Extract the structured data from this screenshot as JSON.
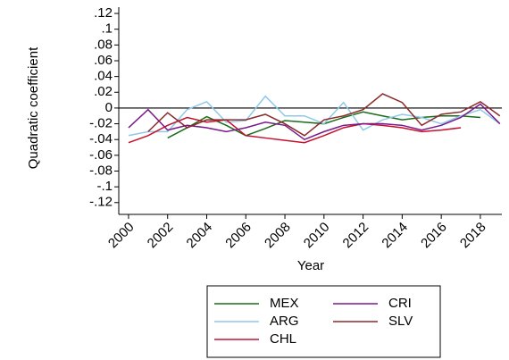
{
  "chart_data": {
    "type": "line",
    "y_label": "Quadratic coefficient",
    "x_label": "Year",
    "x": [
      2000,
      2001,
      2002,
      2003,
      2004,
      2005,
      2006,
      2007,
      2008,
      2009,
      2010,
      2011,
      2012,
      2013,
      2014,
      2015,
      2016,
      2017,
      2018,
      2019
    ],
    "series": [
      {
        "name": "MEX",
        "color": "#1a6b1a",
        "values": [
          null,
          null,
          -0.038,
          -0.025,
          -0.011,
          -0.022,
          -0.035,
          -0.026,
          -0.016,
          -0.018,
          -0.02,
          -0.012,
          -0.005,
          -0.01,
          -0.015,
          -0.012,
          -0.01,
          -0.01,
          -0.012,
          null
        ]
      },
      {
        "name": "ARG",
        "color": "#8ec9e8",
        "values": [
          -0.035,
          -0.03,
          -0.03,
          -0.002,
          0.008,
          -0.018,
          -0.016,
          0.015,
          -0.01,
          -0.01,
          -0.02,
          0.007,
          -0.028,
          -0.015,
          -0.008,
          -0.012,
          -0.02,
          -0.01,
          -0.002,
          -0.02
        ]
      },
      {
        "name": "CHL",
        "color": "#c8102e",
        "values": [
          -0.044,
          -0.035,
          -0.022,
          -0.012,
          -0.018,
          -0.015,
          -0.035,
          -0.038,
          -0.041,
          -0.044,
          -0.035,
          -0.025,
          -0.02,
          -0.022,
          -0.025,
          -0.03,
          -0.028,
          -0.025,
          null,
          null
        ]
      },
      {
        "name": "CRI",
        "color": "#7a1a8a",
        "values": [
          -0.025,
          -0.002,
          -0.028,
          -0.022,
          -0.025,
          -0.03,
          -0.025,
          -0.018,
          -0.022,
          -0.04,
          -0.03,
          -0.022,
          -0.02,
          -0.02,
          -0.022,
          -0.028,
          -0.022,
          -0.012,
          0.005,
          -0.02
        ]
      },
      {
        "name": "SLV",
        "color": "#8b2a2a",
        "values": [
          null,
          -0.03,
          -0.006,
          -0.025,
          -0.015,
          -0.015,
          -0.015,
          -0.008,
          -0.02,
          -0.035,
          -0.015,
          -0.01,
          -0.002,
          0.018,
          0.007,
          -0.022,
          -0.008,
          -0.005,
          0.008,
          -0.01
        ]
      }
    ],
    "xlim": [
      1999.5,
      2019.1
    ],
    "xticks": [
      2000,
      2002,
      2004,
      2006,
      2008,
      2010,
      2012,
      2014,
      2016,
      2018
    ],
    "ylim": [
      -0.135,
      0.128
    ],
    "yticks": [
      {
        "value": 0.12,
        "label": ".12"
      },
      {
        "value": 0.1,
        "label": ".1"
      },
      {
        "value": 0.08,
        "label": ".08"
      },
      {
        "value": 0.06,
        "label": ".06"
      },
      {
        "value": 0.04,
        "label": ".04"
      },
      {
        "value": 0.02,
        "label": ".02"
      },
      0,
      {
        "value": -0.02,
        "label": "-.02"
      },
      {
        "value": -0.04,
        "label": "-.04"
      },
      {
        "value": -0.06,
        "label": "-.06"
      },
      {
        "value": -0.08,
        "label": "-.08"
      },
      {
        "value": -0.1,
        "label": "-.1"
      },
      {
        "value": -0.12,
        "label": "-.12"
      }
    ],
    "reference_line": 0,
    "grid": false,
    "legend_position": "bottom"
  }
}
